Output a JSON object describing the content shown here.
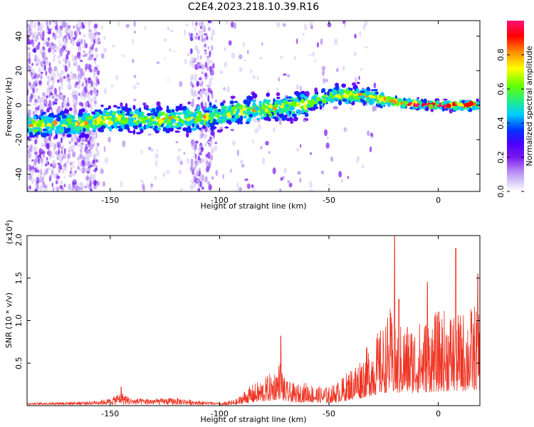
{
  "figure": {
    "title": "C2E4.2023.218.10.39.R16"
  },
  "colors": {
    "snr_line": "#ee3322",
    "colormap": [
      "#ffffff",
      "#dcd0f8",
      "#b487f2",
      "#7a18f0",
      "#4a00ff",
      "#0033ff",
      "#00ccff",
      "#22ee88",
      "#66ff00",
      "#ffff00",
      "#ff8800",
      "#ff0000",
      "#ff1177"
    ]
  },
  "chart_data": [
    {
      "type": "heatmap",
      "xlabel": "Height of straight line (km)",
      "ylabel": "Frequency (Hz)",
      "xlim": [
        -188,
        19
      ],
      "ylim": [
        -50,
        49
      ],
      "xticks": [
        -150,
        -100,
        -50,
        0
      ],
      "xtick_labels": [
        "-150",
        "-100",
        "-50",
        "0"
      ],
      "yticks": [
        -40,
        -20,
        0,
        20,
        40
      ],
      "ytick_labels": [
        "-40",
        "-20",
        "0",
        "20",
        "40"
      ],
      "colorbar": {
        "label": "Normalized spectral amplitude",
        "range": [
          0,
          1
        ],
        "ticks": [
          0.0,
          0.2,
          0.4,
          0.6,
          0.8
        ],
        "tick_labels": [
          "0.0",
          "0.2",
          "0.4",
          "0.6",
          "0.8"
        ]
      },
      "ridge": {
        "x": [
          -188,
          -160,
          -150,
          -130,
          -110,
          -100,
          -90,
          -75,
          -60,
          -50,
          -45,
          -35,
          -25,
          -15,
          0,
          18
        ],
        "y": [
          -12,
          -10,
          -8,
          -8,
          -8,
          -6,
          -3,
          -2,
          1,
          5,
          6,
          6,
          3,
          1,
          0,
          0
        ]
      }
    },
    {
      "type": "line",
      "xlabel": "Height of straight line (km)",
      "ylabel": "SNR (10 * v/v)",
      "scale_label": "(x10",
      "scale_exponent": "4",
      "scale_suffix": ")",
      "xlim": [
        -188,
        19
      ],
      "ylim": [
        0,
        20000
      ],
      "xticks": [
        -150,
        -100,
        -50,
        0
      ],
      "xtick_labels": [
        "-150",
        "-100",
        "-50",
        "0"
      ],
      "yticks": [
        5000,
        10000,
        15000,
        20000
      ],
      "ytick_labels": [
        "0.5",
        "1.0",
        "1.5",
        "2.0"
      ],
      "envelope_x": [
        -188,
        -160,
        -150,
        -145,
        -140,
        -130,
        -120,
        -110,
        -100,
        -92,
        -88,
        -80,
        -75,
        -72,
        -70,
        -65,
        -60,
        -55,
        -50,
        -45,
        -40,
        -35,
        -30,
        -25,
        -22,
        -20,
        -15,
        -10,
        -5,
        0,
        5,
        10,
        15,
        19
      ],
      "envelope_y": [
        300,
        500,
        900,
        1900,
        900,
        900,
        1000,
        600,
        300,
        800,
        2000,
        3200,
        4200,
        5500,
        3000,
        2500,
        2800,
        2300,
        2200,
        3000,
        4500,
        6000,
        8000,
        9500,
        11500,
        9000,
        10000,
        9800,
        10500,
        11200,
        11500,
        11000,
        11800,
        12500
      ],
      "spikes_x": [
        -145,
        -72,
        -20,
        -18,
        -5,
        8,
        18
      ],
      "spikes_y": [
        2200,
        8200,
        20000,
        12500,
        14500,
        18500,
        15500
      ]
    }
  ]
}
